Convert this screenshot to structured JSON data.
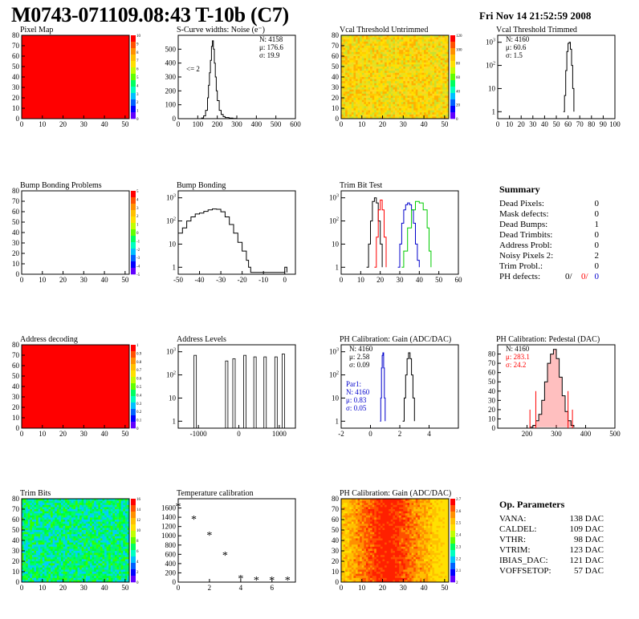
{
  "title": "M0743-071109.08:43 T-10b (C7)",
  "date": "Fri Nov 14 21:52:59 2008",
  "colors": {
    "red": "#ff0000",
    "blue": "#0000cc",
    "green": "#00cc00",
    "black": "#000000"
  },
  "chart_data": [
    {
      "id": "pixel-map",
      "type": "heatmap",
      "title": "Pixel Map",
      "xlim": [
        0,
        52
      ],
      "ylim": [
        0,
        80
      ],
      "x_ticks": [
        0,
        10,
        20,
        30,
        40,
        50
      ],
      "y_ticks": [
        0,
        10,
        20,
        30,
        40,
        50,
        60,
        70,
        80
      ],
      "fill": "uniform",
      "fill_color": "#ff0000",
      "colorbar": {
        "ticks": [
          "0",
          "1",
          "2",
          "3",
          "4",
          "5",
          "6",
          "7",
          "8",
          "9",
          "10"
        ]
      }
    },
    {
      "id": "scurve-noise",
      "type": "line",
      "title": "S-Curve widths: Noise (e⁻)",
      "xlim": [
        0,
        600
      ],
      "ylim": [
        0,
        600
      ],
      "x_ticks": [
        0,
        100,
        200,
        300,
        400,
        500,
        600
      ],
      "y_ticks": [
        0,
        100,
        200,
        300,
        400,
        500
      ],
      "stats": [
        "N: 4158",
        "μ: 176.6",
        "σ: 19.9"
      ],
      "annotation": "<= 2",
      "series": [
        {
          "x": [
            100,
            120,
            130,
            140,
            150,
            155,
            160,
            165,
            170,
            175,
            180,
            185,
            190,
            195,
            200,
            210,
            220,
            230,
            240,
            260,
            280,
            300
          ],
          "y": [
            0,
            5,
            20,
            60,
            150,
            240,
            330,
            420,
            520,
            560,
            500,
            400,
            300,
            200,
            130,
            60,
            30,
            15,
            8,
            4,
            2,
            0
          ]
        }
      ]
    },
    {
      "id": "vcal-untrimmed",
      "type": "heatmap",
      "title": "Vcal Threshold Untrimmed",
      "xlim": [
        0,
        52
      ],
      "ylim": [
        0,
        80
      ],
      "x_ticks": [
        0,
        10,
        20,
        30,
        40,
        50
      ],
      "y_ticks": [
        0,
        10,
        20,
        30,
        40,
        50,
        60,
        70,
        80
      ],
      "fill": "noise",
      "palette": [
        "#ffe000",
        "#ffcc00",
        "#e8e020",
        "#c8e030",
        "#ffb000",
        "#ffd820"
      ],
      "colorbar": {
        "ticks": [
          "0",
          "20",
          "40",
          "60",
          "80",
          "100",
          "120"
        ]
      }
    },
    {
      "id": "vcal-trimmed",
      "type": "line",
      "title": "Vcal Threshold Trimmed",
      "xlim": [
        0,
        100
      ],
      "ylog": true,
      "ylim": [
        0.5,
        2000
      ],
      "x_ticks": [
        0,
        10,
        20,
        30,
        40,
        50,
        60,
        70,
        80,
        90,
        100
      ],
      "y_ticks_log": [
        1,
        10,
        100,
        1000
      ],
      "stats": [
        "N: 4160",
        "μ: 60.6",
        "σ:  1.5"
      ],
      "series": [
        {
          "x": [
            56,
            57,
            58,
            59,
            60,
            61,
            62,
            63,
            64,
            65
          ],
          "y": [
            1,
            5,
            60,
            400,
            900,
            1000,
            500,
            100,
            10,
            1
          ]
        }
      ]
    },
    {
      "id": "bump-problems",
      "type": "heatmap",
      "title": "Bump Bonding Problems",
      "xlim": [
        0,
        52
      ],
      "ylim": [
        0,
        80
      ],
      "x_ticks": [
        0,
        10,
        20,
        30,
        40,
        50
      ],
      "y_ticks": [
        0,
        10,
        20,
        30,
        40,
        50,
        60,
        70,
        80
      ],
      "fill": "empty",
      "colorbar": {
        "ticks": [
          "-5",
          "-4",
          "-3",
          "-2",
          "-1",
          "0",
          "1",
          "2",
          "3",
          "4",
          "5"
        ]
      }
    },
    {
      "id": "bump-bonding",
      "type": "line",
      "title": "Bump Bonding",
      "xlim": [
        -50,
        5
      ],
      "ylog": true,
      "ylim": [
        0.5,
        2000
      ],
      "x_ticks": [
        -50,
        -40,
        -30,
        -20,
        -10,
        0
      ],
      "y_ticks_log": [
        1,
        10,
        100,
        1000
      ],
      "series": [
        {
          "x": [
            -50,
            -48,
            -46,
            -44,
            -42,
            -40,
            -38,
            -36,
            -34,
            -32,
            -30,
            -28,
            -26,
            -24,
            -22,
            -20,
            -18,
            -17,
            -16,
            -1,
            0,
            1
          ],
          "y": [
            30,
            50,
            100,
            150,
            200,
            220,
            260,
            300,
            330,
            320,
            250,
            150,
            70,
            30,
            12,
            5,
            2,
            1,
            0.6,
            0.6,
            1,
            0.6
          ]
        }
      ]
    },
    {
      "id": "trim-bit-test",
      "type": "line",
      "title": "Trim Bit Test",
      "xlim": [
        0,
        60
      ],
      "ylog": true,
      "ylim": [
        0.5,
        2000
      ],
      "x_ticks": [
        0,
        10,
        20,
        30,
        40,
        50,
        60
      ],
      "y_ticks_log": [
        1,
        10,
        100,
        1000
      ],
      "series": [
        {
          "color": "#000000",
          "x": [
            13,
            14,
            15,
            16,
            17,
            18,
            19,
            20,
            21
          ],
          "y": [
            1,
            10,
            100,
            700,
            1000,
            600,
            100,
            10,
            1
          ]
        },
        {
          "color": "#ff0000",
          "x": [
            17,
            18,
            19,
            20,
            21,
            22,
            23
          ],
          "y": [
            1,
            20,
            300,
            800,
            300,
            20,
            1
          ]
        },
        {
          "color": "#0000cc",
          "x": [
            29,
            30,
            31,
            32,
            33,
            34,
            35,
            36,
            37,
            38,
            39,
            40
          ],
          "y": [
            1,
            10,
            80,
            300,
            500,
            600,
            500,
            300,
            80,
            10,
            2,
            1
          ]
        },
        {
          "color": "#00cc00",
          "x": [
            31,
            32,
            34,
            36,
            38,
            40,
            42,
            44,
            45,
            46
          ],
          "y": [
            1,
            5,
            50,
            300,
            700,
            600,
            300,
            50,
            5,
            1
          ]
        }
      ]
    },
    {
      "id": "address-decoding",
      "type": "heatmap",
      "title": "Address decoding",
      "xlim": [
        0,
        52
      ],
      "ylim": [
        0,
        80
      ],
      "x_ticks": [
        0,
        10,
        20,
        30,
        40,
        50
      ],
      "y_ticks": [
        0,
        10,
        20,
        30,
        40,
        50,
        60,
        70,
        80
      ],
      "fill": "uniform",
      "fill_color": "#ff0000",
      "colorbar": {
        "ticks": [
          "0",
          "0.1",
          "0.2",
          "0.3",
          "0.4",
          "0.5",
          "0.6",
          "0.7",
          "0.8",
          "0.9",
          "1"
        ]
      }
    },
    {
      "id": "address-levels",
      "type": "bar",
      "title": "Address Levels",
      "xlim": [
        -1500,
        1400
      ],
      "ylog": true,
      "ylim": [
        0.5,
        2000
      ],
      "x_ticks": [
        -1000,
        0,
        1000
      ],
      "y_ticks_log": [
        1,
        10,
        100,
        1000
      ],
      "peaks": [
        {
          "x": -1080,
          "y": 700
        },
        {
          "x": -300,
          "y": 400
        },
        {
          "x": -120,
          "y": 500
        },
        {
          "x": 150,
          "y": 700
        },
        {
          "x": 400,
          "y": 600
        },
        {
          "x": 650,
          "y": 600
        },
        {
          "x": 920,
          "y": 600
        },
        {
          "x": 1100,
          "y": 800
        }
      ]
    },
    {
      "id": "ph-gain",
      "type": "line",
      "title": "PH Calibration: Gain (ADC/DAC)",
      "xlim": [
        -2,
        6
      ],
      "ylog": true,
      "ylim": [
        0.5,
        2000
      ],
      "x_ticks": [
        -2,
        0,
        2,
        4
      ],
      "y_ticks_log": [
        1,
        10,
        100,
        1000
      ],
      "stats": [
        "N: 4160",
        "μ: 2.58",
        "σ: 0.09"
      ],
      "stats2": [
        "Par1:",
        "N: 4160",
        "μ: 0.83",
        "σ: 0.05"
      ],
      "series": [
        {
          "color": "#000000",
          "x": [
            2.2,
            2.3,
            2.4,
            2.5,
            2.6,
            2.7,
            2.8,
            2.9,
            3.0
          ],
          "y": [
            1,
            10,
            100,
            500,
            900,
            500,
            100,
            10,
            1
          ]
        },
        {
          "color": "#0000cc",
          "x": [
            0.65,
            0.7,
            0.75,
            0.8,
            0.85,
            0.9,
            0.95,
            1.0
          ],
          "y": [
            1,
            10,
            200,
            700,
            900,
            200,
            10,
            1
          ]
        }
      ]
    },
    {
      "id": "ph-pedestal",
      "type": "line",
      "title": "PH Calibration: Pedestal (DAC)",
      "xlim": [
        100,
        500
      ],
      "ylim": [
        0,
        90
      ],
      "x_ticks": [
        200,
        300,
        400,
        500
      ],
      "y_ticks": [
        0,
        10,
        20,
        30,
        40,
        50,
        60,
        70,
        80
      ],
      "stats": [
        "N: 4160",
        "μ: 283.1",
        "σ: 24.2"
      ],
      "series": [
        {
          "x": [
            210,
            220,
            230,
            240,
            250,
            260,
            270,
            280,
            290,
            300,
            310,
            320,
            330,
            340,
            350,
            360
          ],
          "y": [
            1,
            3,
            8,
            15,
            30,
            50,
            70,
            80,
            85,
            75,
            55,
            35,
            18,
            8,
            3,
            1
          ]
        }
      ]
    },
    {
      "id": "trim-bits",
      "type": "heatmap",
      "title": "Trim Bits",
      "xlim": [
        0,
        52
      ],
      "ylim": [
        0,
        80
      ],
      "x_ticks": [
        0,
        10,
        20,
        30,
        40,
        50
      ],
      "y_ticks": [
        0,
        10,
        20,
        30,
        40,
        50,
        60,
        70,
        80
      ],
      "fill": "noise",
      "palette": [
        "#00ff66",
        "#00ee88",
        "#00dddd",
        "#00ff33",
        "#33ff00",
        "#00ccff"
      ],
      "colorbar": {
        "ticks": [
          "0",
          "2",
          "4",
          "6",
          "8",
          "10",
          "12",
          "14",
          "16"
        ]
      }
    },
    {
      "id": "temperature-calibration",
      "type": "scatter",
      "title": "Temperature calibration",
      "xlim": [
        0,
        7.5
      ],
      "ylim": [
        0,
        1800
      ],
      "x_ticks": [
        0,
        2,
        4,
        6
      ],
      "y_ticks": [
        0,
        200,
        400,
        600,
        800,
        1000,
        1200,
        1400,
        1600
      ],
      "points": [
        {
          "x": 0,
          "y": 1640
        },
        {
          "x": 1,
          "y": 1370
        },
        {
          "x": 2,
          "y": 1020
        },
        {
          "x": 3,
          "y": 590
        },
        {
          "x": 4,
          "y": 90
        },
        {
          "x": 5,
          "y": 50
        },
        {
          "x": 6,
          "y": 50
        },
        {
          "x": 7,
          "y": 50
        }
      ]
    },
    {
      "id": "ph-gain-map",
      "type": "heatmap",
      "title": "PH Calibration: Gain (ADC/DAC)",
      "xlim": [
        0,
        52
      ],
      "ylim": [
        0,
        80
      ],
      "x_ticks": [
        0,
        10,
        20,
        30,
        40,
        50
      ],
      "y_ticks": [
        0,
        10,
        20,
        30,
        40,
        50,
        60,
        70,
        80
      ],
      "fill": "columns",
      "palette": [
        "#ffe000",
        "#ffc000",
        "#ff9000",
        "#ff5000",
        "#ff2000"
      ],
      "colorbar": {
        "ticks": [
          "2",
          "2.1",
          "2.2",
          "2.3",
          "2.4",
          "2.5",
          "2.6",
          "2.7"
        ]
      }
    }
  ],
  "summary": {
    "heading": "Summary",
    "rows": [
      {
        "label": "Dead Pixels:",
        "value": "0"
      },
      {
        "label": "Mask defects:",
        "value": "0"
      },
      {
        "label": "Dead Bumps:",
        "value": "1"
      },
      {
        "label": "Dead Trimbits:",
        "value": "0"
      },
      {
        "label": "Address Probl:",
        "value": "0"
      },
      {
        "label": "Noisy Pixels 2:",
        "value": "2"
      },
      {
        "label": "Trim Probl.:",
        "value": "0"
      }
    ],
    "ph_defects": {
      "label": "PH defects:",
      "v1": "0/",
      "v2": "0/",
      "v3": "0"
    }
  },
  "op_parameters": {
    "heading": "Op. Parameters",
    "rows": [
      {
        "label": "VANA:",
        "value": "138 DAC"
      },
      {
        "label": "CALDEL:",
        "value": "109 DAC"
      },
      {
        "label": "VTHR:",
        "value": "98 DAC"
      },
      {
        "label": "VTRIM:",
        "value": "123 DAC"
      },
      {
        "label": "IBIAS_DAC:",
        "value": "121 DAC"
      },
      {
        "label": "VOFFSETOP:",
        "value": "57 DAC"
      }
    ]
  }
}
